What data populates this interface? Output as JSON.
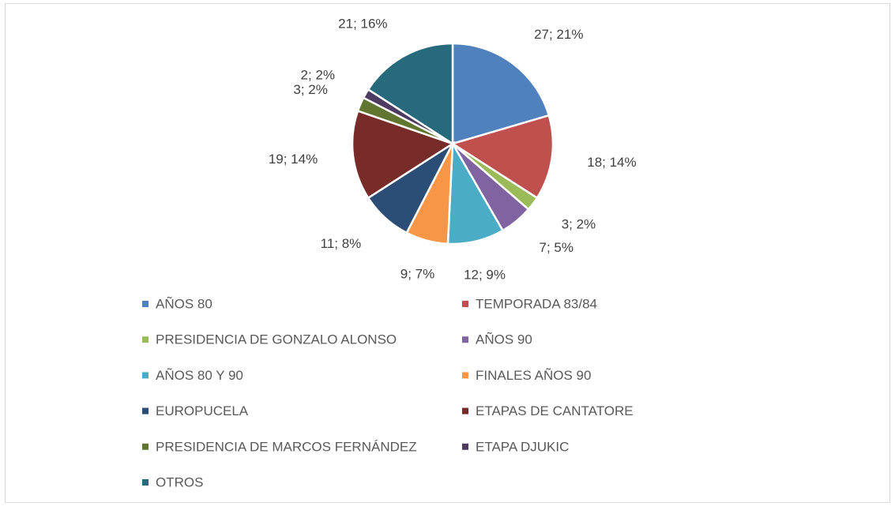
{
  "chart_data": {
    "type": "pie",
    "categories": [
      "AÑOS 80",
      "TEMPORADA 83/84",
      "PRESIDENCIA DE GONZALO ALONSO",
      "AÑOS 90",
      "AÑOS 80 Y 90",
      "FINALES AÑOS 90",
      "EUROPUCELA",
      "ETAPAS DE CANTATORE",
      "PRESIDENCIA DE MARCOS FERNÁNDEZ",
      "ETAPA DJUKIC",
      "OTROS"
    ],
    "values": [
      27,
      18,
      3,
      7,
      12,
      9,
      11,
      19,
      3,
      2,
      21
    ],
    "value_labels": [
      "27; 21%",
      "18; 14%",
      "3; 2%",
      "7; 5%",
      "12; 9%",
      "9; 7%",
      "11; 8%",
      "19; 14%",
      "3; 2%",
      "2; 2%",
      "21; 16%"
    ],
    "colors": [
      "#4f81bd",
      "#c0504d",
      "#9bbb59",
      "#8064a2",
      "#4bacc6",
      "#f79646",
      "#2c4d75",
      "#772c2a",
      "#5f7530",
      "#4d3b62",
      "#276a7c"
    ],
    "legend": "bottom"
  }
}
